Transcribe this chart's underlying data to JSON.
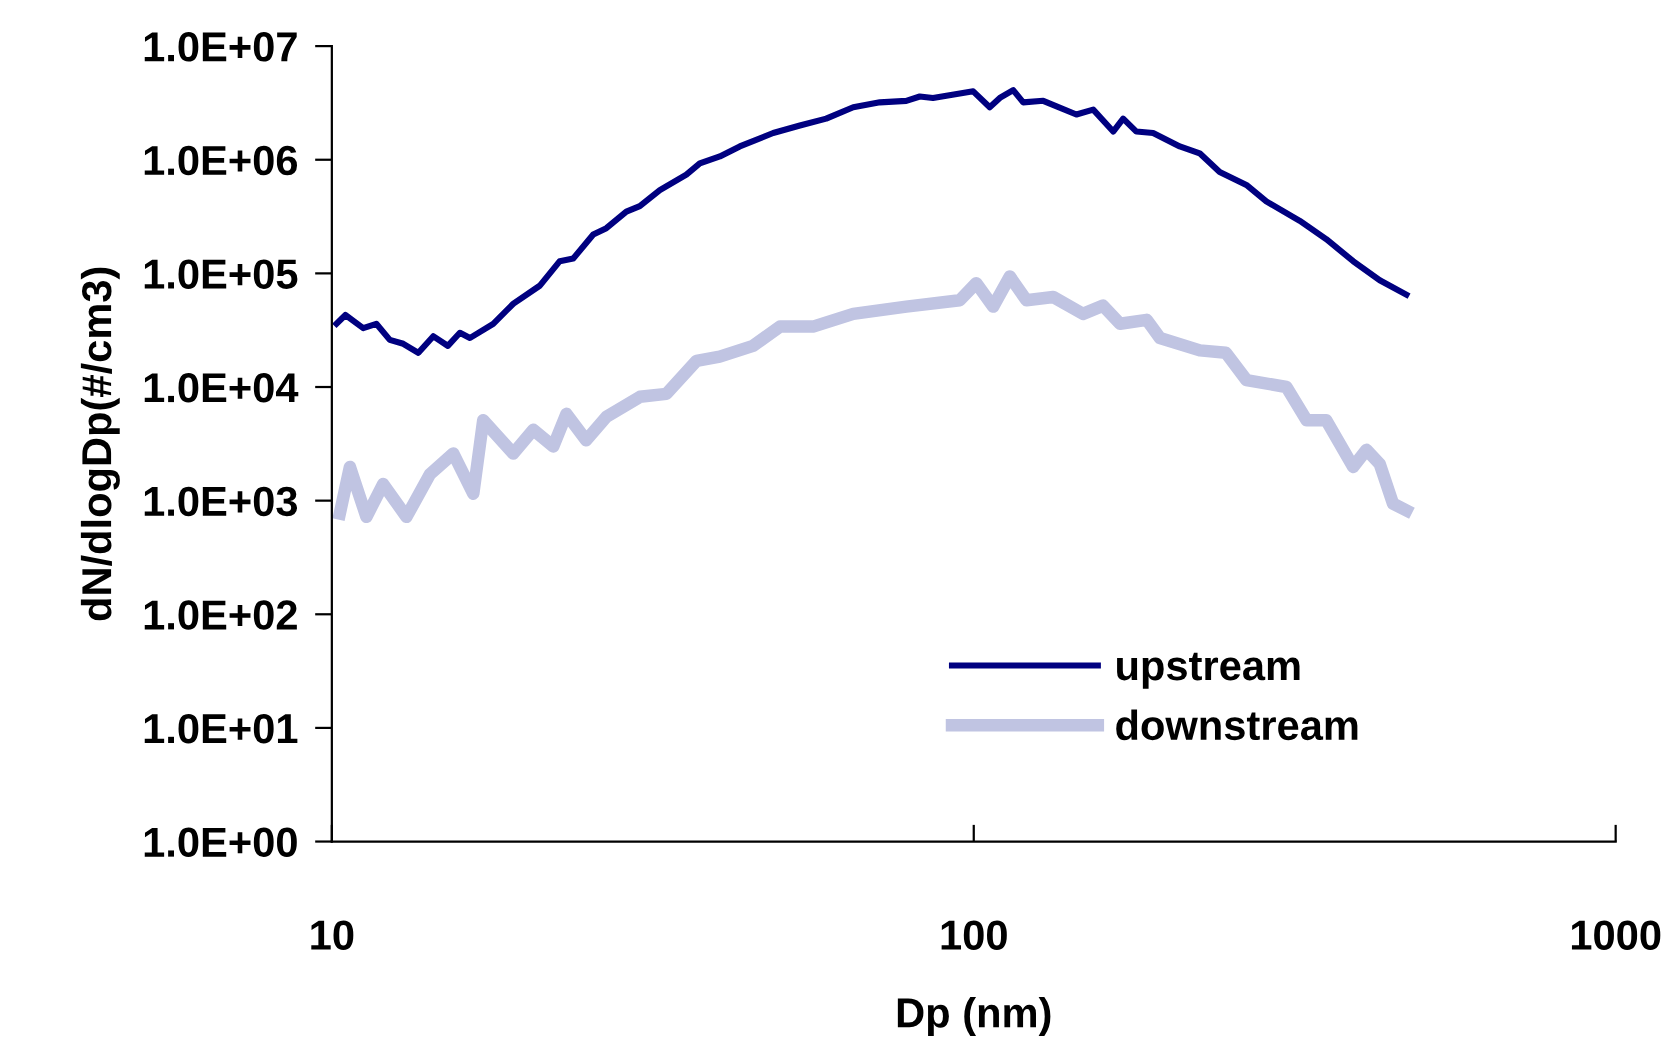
{
  "chart_data": {
    "type": "line",
    "xlabel": "Dp (nm)",
    "ylabel": "dN/dlogDp(#/cm3)",
    "log": "xy",
    "grid": false,
    "legend": "bottom right",
    "marker": "none",
    "line_style": "solid",
    "xlim": [
      10,
      1000
    ],
    "xticks": [
      10,
      100,
      1000
    ],
    "ylim": [
      1,
      10000000
    ],
    "yticks": [
      {
        "value": 1,
        "label": "1.0E+00"
      },
      {
        "value": 10,
        "label": "1.0E+01"
      },
      {
        "value": 100,
        "label": "1.0E+02"
      },
      {
        "value": 1000,
        "label": "1.0E+03"
      },
      {
        "value": 10000,
        "label": "1.0E+04"
      },
      {
        "value": 100000,
        "label": "1.0E+05"
      },
      {
        "value": 1000000,
        "label": "1.0E+06"
      },
      {
        "value": 10000000,
        "label": "1.0E+07"
      }
    ],
    "series": [
      {
        "name": "upstream",
        "color": "#000080",
        "x": [
          10.17,
          10.5,
          11.19,
          11.73,
          12.31,
          12.92,
          13.64,
          14.39,
          15.16,
          15.83,
          16.41,
          17.84,
          19.17,
          21.09,
          22.65,
          23.77,
          25.54,
          26.77,
          28.76,
          30.18,
          32.43,
          35.67,
          37.43,
          40.22,
          43.2,
          48.7,
          53.6,
          58.9,
          64.9,
          71.4,
          78.5,
          82.4,
          86.4,
          99.8,
          105.9,
          109.8,
          115.2,
          119.4,
          128.3,
          144.5,
          153.5,
          164.9,
          170.9,
          179.2,
          190.3,
          209.4,
          224.9,
          241.6,
          265.9,
          285.6,
          322,
          354.2,
          390,
          429,
          472
        ],
        "values": [
          36000,
          43000,
          33000,
          36000,
          26000,
          24000,
          20000,
          28000,
          23000,
          30000,
          27000,
          36000,
          54000,
          78000,
          128000,
          135000,
          220000,
          250000,
          350000,
          390000,
          540000,
          740000,
          930000,
          1070000,
          1310000,
          1720000,
          2000000,
          2300000,
          2900000,
          3200000,
          3300000,
          3600000,
          3500000,
          4000000,
          2900000,
          3500000,
          4100000,
          3200000,
          3300000,
          2500000,
          2760000,
          1770000,
          2300000,
          1770000,
          1720000,
          1310000,
          1140000,
          780000,
          600000,
          430000,
          290000,
          200000,
          128000,
          87000,
          65000
        ]
      },
      {
        "name": "downstream",
        "color": "#c0c4e2",
        "x": [
          10.29,
          10.67,
          11.32,
          12.02,
          13.07,
          14.21,
          15.46,
          16.61,
          17.21,
          19.17,
          20.6,
          22.13,
          23.2,
          24.9,
          26.8,
          30.2,
          33.2,
          37.0,
          40.2,
          45.3,
          49.9,
          56.2,
          64.9,
          78.5,
          95.1,
          100.9,
          107.2,
          113.8,
          120.8,
          133,
          148,
          159,
          169,
          186,
          195,
          225,
          247,
          266,
          307,
          330,
          354,
          390,
          409,
          429,
          450,
          472
        ],
        "values": [
          770,
          1980,
          720,
          1400,
          720,
          1700,
          2600,
          1150,
          5100,
          2600,
          4200,
          3000,
          5800,
          3400,
          5500,
          8200,
          8700,
          17000,
          18500,
          23000,
          34000,
          34000,
          44000,
          51000,
          58000,
          82000,
          51000,
          94000,
          58000,
          62000,
          44000,
          52000,
          36000,
          39000,
          27000,
          21000,
          20000,
          11500,
          10000,
          5100,
          5100,
          1980,
          2800,
          2100,
          940,
          820
        ]
      }
    ]
  }
}
